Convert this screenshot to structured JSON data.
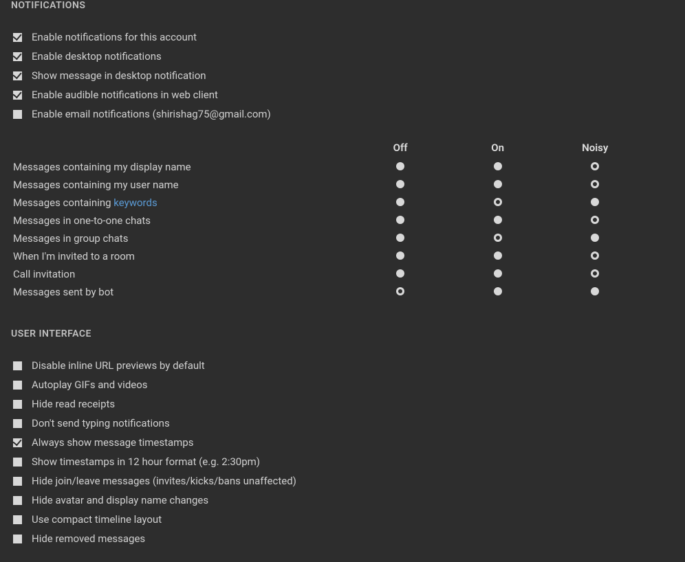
{
  "colors": {
    "background": "#2d2d2d",
    "text": "#d0d0d0",
    "header_text": "#c0c0c0",
    "link": "#5b9bd5",
    "checkbox_bg": "#d8d8d8",
    "check_mark": "#2d2d2d"
  },
  "typography": {
    "body_fontsize": 15,
    "header_fontsize": 14,
    "header_weight": 600
  },
  "notifications": {
    "header": "NOTIFICATIONS",
    "checkboxes": [
      {
        "label": "Enable notifications for this account",
        "checked": true
      },
      {
        "label": "Enable desktop notifications",
        "checked": true
      },
      {
        "label": "Show message in desktop notification",
        "checked": true
      },
      {
        "label": "Enable audible notifications in web client",
        "checked": true
      },
      {
        "label": "Enable email notifications (shirishag75@gmail.com)",
        "checked": false
      }
    ],
    "table": {
      "columns": [
        "",
        "Off",
        "On",
        "Noisy"
      ],
      "rows": [
        {
          "label": "Messages containing my display name",
          "selected": 2
        },
        {
          "label": "Messages containing my user name",
          "selected": 2
        },
        {
          "label_prefix": "Messages containing ",
          "keywords_text": "keywords",
          "selected": 1
        },
        {
          "label": "Messages in one-to-one chats",
          "selected": 2
        },
        {
          "label": "Messages in group chats",
          "selected": 1
        },
        {
          "label": "When I'm invited to a room",
          "selected": 2
        },
        {
          "label": "Call invitation",
          "selected": 2
        },
        {
          "label": "Messages sent by bot",
          "selected": 0
        }
      ]
    }
  },
  "user_interface": {
    "header": "USER INTERFACE",
    "checkboxes": [
      {
        "label": "Disable inline URL previews by default",
        "checked": false
      },
      {
        "label": "Autoplay GIFs and videos",
        "checked": false
      },
      {
        "label": "Hide read receipts",
        "checked": false
      },
      {
        "label": "Don't send typing notifications",
        "checked": false
      },
      {
        "label": "Always show message timestamps",
        "checked": true
      },
      {
        "label": "Show timestamps in 12 hour format (e.g. 2:30pm)",
        "checked": false
      },
      {
        "label": "Hide join/leave messages (invites/kicks/bans unaffected)",
        "checked": false
      },
      {
        "label": "Hide avatar and display name changes",
        "checked": false
      },
      {
        "label": "Use compact timeline layout",
        "checked": false
      },
      {
        "label": "Hide removed messages",
        "checked": false
      }
    ]
  }
}
